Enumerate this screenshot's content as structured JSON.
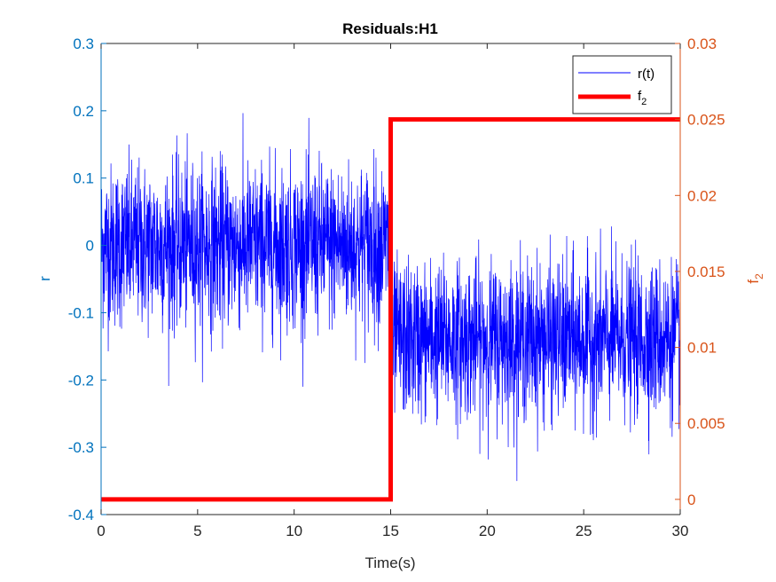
{
  "chart_data": {
    "type": "line",
    "title": "Residuals:H1",
    "xlabel": "Time(s)",
    "ylabel_left": "r",
    "ylabel_right_base": "f",
    "ylabel_right_sub": "2",
    "xlim": [
      0,
      30
    ],
    "ylim_left": [
      -0.4,
      0.3
    ],
    "ylim_right": [
      -0.001,
      0.03
    ],
    "x_ticks": [
      "0",
      "5",
      "10",
      "15",
      "20",
      "25",
      "30"
    ],
    "y_left_ticks": [
      "0.3",
      "0.2",
      "0.1",
      "0",
      "-0.1",
      "-0.2",
      "-0.3",
      "-0.4"
    ],
    "y_right_ticks": [
      "0.03",
      "0.025",
      "0.02",
      "0.015",
      "0.01",
      "0.005",
      "0"
    ],
    "grid": false,
    "legend_position": "top-right",
    "series": [
      {
        "name": "r(t)",
        "axis": "left",
        "color": "#0000FF",
        "kind": "noise",
        "segments": [
          {
            "x_start": 0,
            "x_end": 15,
            "mean": 0.0,
            "typical_max": 0.18,
            "typical_min": -0.18,
            "peak_max": 0.27,
            "peak_min": -0.21
          },
          {
            "x_start": 15,
            "x_end": 30,
            "mean": -0.14,
            "typical_max": 0.03,
            "typical_min": -0.31,
            "peak_max": 0.06,
            "peak_min": -0.35
          }
        ]
      },
      {
        "name_base": "f",
        "name_sub": "2",
        "axis": "right",
        "color": "#FF0000",
        "kind": "step",
        "x": [
          0,
          15,
          15,
          30
        ],
        "y": [
          0,
          0,
          0.025,
          0.025
        ]
      }
    ]
  },
  "colors": {
    "left_axis": "#0072BD",
    "right_axis": "#D95319",
    "axes_box": "#262626"
  }
}
